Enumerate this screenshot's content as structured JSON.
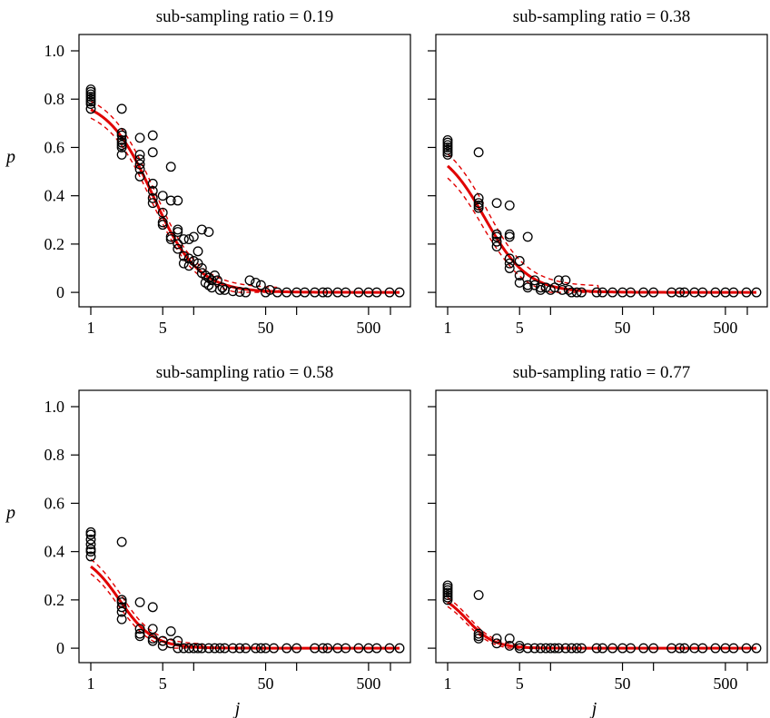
{
  "chart_data": [
    {
      "type": "scatter",
      "title": "sub-sampling ratio = 0.19",
      "xlabel": "",
      "ylabel": "p",
      "xscale": "log",
      "xlim": [
        1,
        1000
      ],
      "ylim": [
        0,
        1.0
      ],
      "xticks": [
        "1",
        "5",
        "50",
        "500"
      ],
      "yticks": [
        "0",
        "0.2",
        "0.4",
        "0.6",
        "0.8",
        "1.0"
      ],
      "grid": false,
      "points": [
        [
          1,
          0.84
        ],
        [
          1,
          0.83
        ],
        [
          1,
          0.82
        ],
        [
          1,
          0.81
        ],
        [
          1,
          0.8
        ],
        [
          1,
          0.79
        ],
        [
          1,
          0.78
        ],
        [
          1,
          0.76
        ],
        [
          2,
          0.76
        ],
        [
          2,
          0.66
        ],
        [
          2,
          0.65
        ],
        [
          2,
          0.63
        ],
        [
          2,
          0.62
        ],
        [
          2,
          0.61
        ],
        [
          2,
          0.6
        ],
        [
          2,
          0.57
        ],
        [
          3,
          0.64
        ],
        [
          3,
          0.57
        ],
        [
          3,
          0.55
        ],
        [
          3,
          0.53
        ],
        [
          3,
          0.51
        ],
        [
          3,
          0.48
        ],
        [
          4,
          0.65
        ],
        [
          4,
          0.58
        ],
        [
          4,
          0.45
        ],
        [
          4,
          0.42
        ],
        [
          4,
          0.39
        ],
        [
          4,
          0.37
        ],
        [
          5,
          0.4
        ],
        [
          5,
          0.33
        ],
        [
          5,
          0.29
        ],
        [
          5,
          0.28
        ],
        [
          6,
          0.52
        ],
        [
          6,
          0.38
        ],
        [
          6,
          0.23
        ],
        [
          6,
          0.22
        ],
        [
          7,
          0.38
        ],
        [
          7,
          0.26
        ],
        [
          7,
          0.25
        ],
        [
          7,
          0.2
        ],
        [
          7,
          0.18
        ],
        [
          8,
          0.22
        ],
        [
          8,
          0.15
        ],
        [
          8,
          0.12
        ],
        [
          9,
          0.22
        ],
        [
          9,
          0.14
        ],
        [
          9,
          0.11
        ],
        [
          10,
          0.23
        ],
        [
          10,
          0.13
        ],
        [
          11,
          0.17
        ],
        [
          11,
          0.12
        ],
        [
          12,
          0.26
        ],
        [
          12,
          0.1
        ],
        [
          12,
          0.08
        ],
        [
          13,
          0.07
        ],
        [
          13,
          0.04
        ],
        [
          14,
          0.25
        ],
        [
          14,
          0.06
        ],
        [
          14,
          0.03
        ],
        [
          15,
          0.05
        ],
        [
          15,
          0.02
        ],
        [
          16,
          0.07
        ],
        [
          17,
          0.05
        ],
        [
          18,
          0.01
        ],
        [
          19,
          0.02
        ],
        [
          20,
          0.01
        ],
        [
          24,
          0.005
        ],
        [
          28,
          0.002
        ],
        [
          32,
          0.0
        ],
        [
          35,
          0.05
        ],
        [
          40,
          0.04
        ],
        [
          45,
          0.03
        ],
        [
          50,
          0.0
        ],
        [
          55,
          0.01
        ],
        [
          65,
          0.0
        ],
        [
          80,
          0.0
        ],
        [
          100,
          0.0
        ],
        [
          120,
          0.0
        ],
        [
          150,
          0.0
        ],
        [
          180,
          0.0
        ],
        [
          200,
          0.0
        ],
        [
          250,
          0.0
        ],
        [
          300,
          0.0
        ],
        [
          400,
          0.0
        ],
        [
          500,
          0.0
        ],
        [
          600,
          0.0
        ],
        [
          800,
          0.0
        ],
        [
          1000,
          0.0
        ]
      ],
      "fit": {
        "x0": 4.0,
        "slope": 0.9,
        "top": 0.805
      },
      "band_width": 0.035
    },
    {
      "type": "scatter",
      "title": "sub-sampling ratio = 0.38",
      "xlabel": "",
      "ylabel": "",
      "xscale": "log",
      "xlim": [
        1,
        1000
      ],
      "ylim": [
        0,
        1.0
      ],
      "xticks": [
        "1",
        "5",
        "50",
        "500"
      ],
      "yticks": [],
      "grid": false,
      "points": [
        [
          1,
          0.63
        ],
        [
          1,
          0.62
        ],
        [
          1,
          0.61
        ],
        [
          1,
          0.6
        ],
        [
          1,
          0.59
        ],
        [
          1,
          0.58
        ],
        [
          1,
          0.57
        ],
        [
          2,
          0.58
        ],
        [
          2,
          0.39
        ],
        [
          2,
          0.37
        ],
        [
          2,
          0.36
        ],
        [
          2,
          0.35
        ],
        [
          3,
          0.37
        ],
        [
          3,
          0.24
        ],
        [
          3,
          0.23
        ],
        [
          3,
          0.21
        ],
        [
          3,
          0.19
        ],
        [
          4,
          0.36
        ],
        [
          4,
          0.24
        ],
        [
          4,
          0.23
        ],
        [
          4,
          0.14
        ],
        [
          4,
          0.12
        ],
        [
          4,
          0.1
        ],
        [
          5,
          0.13
        ],
        [
          5,
          0.07
        ],
        [
          5,
          0.04
        ],
        [
          6,
          0.23
        ],
        [
          6,
          0.03
        ],
        [
          6,
          0.02
        ],
        [
          7,
          0.05
        ],
        [
          7,
          0.03
        ],
        [
          8,
          0.02
        ],
        [
          8,
          0.01
        ],
        [
          9,
          0.02
        ],
        [
          10,
          0.01
        ],
        [
          11,
          0.02
        ],
        [
          12,
          0.05
        ],
        [
          13,
          0.01
        ],
        [
          14,
          0.05
        ],
        [
          15,
          0.01
        ],
        [
          16,
          0.0
        ],
        [
          18,
          0.0
        ],
        [
          20,
          0.0
        ],
        [
          28,
          0.0
        ],
        [
          32,
          0.0
        ],
        [
          40,
          0.0
        ],
        [
          50,
          0.0
        ],
        [
          60,
          0.0
        ],
        [
          80,
          0.0
        ],
        [
          100,
          0.0
        ],
        [
          150,
          0.0
        ],
        [
          180,
          0.0
        ],
        [
          200,
          0.0
        ],
        [
          250,
          0.0
        ],
        [
          300,
          0.0
        ],
        [
          400,
          0.0
        ],
        [
          500,
          0.0
        ],
        [
          600,
          0.0
        ],
        [
          800,
          0.0
        ],
        [
          1000,
          0.0
        ]
      ],
      "fit": {
        "x0": 2.3,
        "slope": 0.95,
        "top": 0.615
      },
      "band_width": 0.05
    },
    {
      "type": "scatter",
      "title": "sub-sampling ratio = 0.58",
      "xlabel": "j",
      "ylabel": "p",
      "xscale": "log",
      "xlim": [
        1,
        1000
      ],
      "ylim": [
        0,
        1.0
      ],
      "xticks": [
        "1",
        "5",
        "50",
        "500"
      ],
      "yticks": [
        "0",
        "0.2",
        "0.4",
        "0.6",
        "0.8",
        "1.0"
      ],
      "grid": false,
      "points": [
        [
          1,
          0.48
        ],
        [
          1,
          0.47
        ],
        [
          1,
          0.45
        ],
        [
          1,
          0.43
        ],
        [
          1,
          0.41
        ],
        [
          1,
          0.4
        ],
        [
          1,
          0.38
        ],
        [
          2,
          0.44
        ],
        [
          2,
          0.2
        ],
        [
          2,
          0.19
        ],
        [
          2,
          0.17
        ],
        [
          2,
          0.15
        ],
        [
          2,
          0.12
        ],
        [
          3,
          0.19
        ],
        [
          3,
          0.08
        ],
        [
          3,
          0.06
        ],
        [
          3,
          0.05
        ],
        [
          4,
          0.17
        ],
        [
          4,
          0.08
        ],
        [
          4,
          0.04
        ],
        [
          4,
          0.03
        ],
        [
          5,
          0.03
        ],
        [
          5,
          0.01
        ],
        [
          6,
          0.07
        ],
        [
          6,
          0.02
        ],
        [
          7,
          0.03
        ],
        [
          7,
          0.0
        ],
        [
          8,
          0.0
        ],
        [
          9,
          0.0
        ],
        [
          10,
          0.0
        ],
        [
          11,
          0.0
        ],
        [
          12,
          0.0
        ],
        [
          14,
          0.0
        ],
        [
          16,
          0.0
        ],
        [
          18,
          0.0
        ],
        [
          20,
          0.0
        ],
        [
          24,
          0.0
        ],
        [
          28,
          0.0
        ],
        [
          32,
          0.0
        ],
        [
          40,
          0.0
        ],
        [
          45,
          0.0
        ],
        [
          50,
          0.0
        ],
        [
          60,
          0.0
        ],
        [
          80,
          0.0
        ],
        [
          100,
          0.0
        ],
        [
          150,
          0.0
        ],
        [
          180,
          0.0
        ],
        [
          200,
          0.0
        ],
        [
          250,
          0.0
        ],
        [
          300,
          0.0
        ],
        [
          400,
          0.0
        ],
        [
          500,
          0.0
        ],
        [
          600,
          0.0
        ],
        [
          800,
          0.0
        ],
        [
          1000,
          0.0
        ]
      ],
      "fit": {
        "x0": 1.9,
        "slope": 1.2,
        "top": 0.4
      },
      "band_width": 0.03
    },
    {
      "type": "scatter",
      "title": "sub-sampling ratio = 0.77",
      "xlabel": "j",
      "ylabel": "",
      "xscale": "log",
      "xlim": [
        1,
        1000
      ],
      "ylim": [
        0,
        1.0
      ],
      "xticks": [
        "1",
        "5",
        "50",
        "500"
      ],
      "yticks": [],
      "grid": false,
      "points": [
        [
          1,
          0.26
        ],
        [
          1,
          0.25
        ],
        [
          1,
          0.24
        ],
        [
          1,
          0.23
        ],
        [
          1,
          0.22
        ],
        [
          1,
          0.21
        ],
        [
          1,
          0.2
        ],
        [
          2,
          0.22
        ],
        [
          2,
          0.06
        ],
        [
          2,
          0.05
        ],
        [
          2,
          0.04
        ],
        [
          3,
          0.04
        ],
        [
          3,
          0.02
        ],
        [
          4,
          0.04
        ],
        [
          4,
          0.01
        ],
        [
          5,
          0.01
        ],
        [
          5,
          0.0
        ],
        [
          6,
          0.0
        ],
        [
          7,
          0.0
        ],
        [
          8,
          0.0
        ],
        [
          9,
          0.0
        ],
        [
          10,
          0.0
        ],
        [
          11,
          0.0
        ],
        [
          12,
          0.0
        ],
        [
          14,
          0.0
        ],
        [
          16,
          0.0
        ],
        [
          18,
          0.0
        ],
        [
          20,
          0.0
        ],
        [
          28,
          0.0
        ],
        [
          32,
          0.0
        ],
        [
          40,
          0.0
        ],
        [
          50,
          0.0
        ],
        [
          60,
          0.0
        ],
        [
          80,
          0.0
        ],
        [
          100,
          0.0
        ],
        [
          150,
          0.0
        ],
        [
          180,
          0.0
        ],
        [
          200,
          0.0
        ],
        [
          250,
          0.0
        ],
        [
          300,
          0.0
        ],
        [
          400,
          0.0
        ],
        [
          500,
          0.0
        ],
        [
          600,
          0.0
        ],
        [
          800,
          0.0
        ],
        [
          1000,
          0.0
        ]
      ],
      "fit": {
        "x0": 1.55,
        "slope": 1.5,
        "top": 0.235
      },
      "band_width": 0.018
    }
  ]
}
